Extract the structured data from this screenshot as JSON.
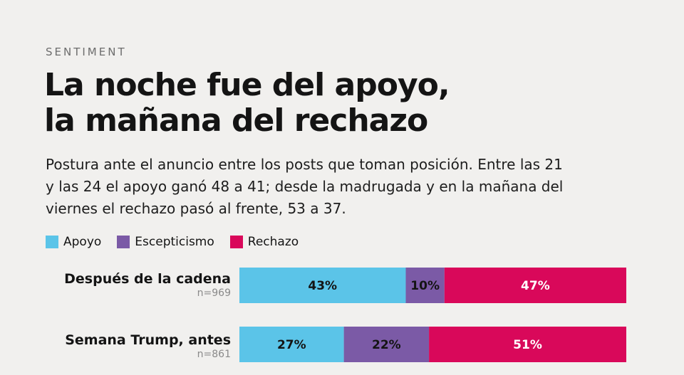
{
  "eyebrow": "SENTIMENT",
  "title_lines": [
    "La noche fue del apoyo,",
    "la mañana del rechazo"
  ],
  "subtitle_lines": [
    "Postura ante el anuncio entre los posts que toman posición. Entre las 21",
    "y las 24 el apoyo ganó 48 a 41; desde la madrugada y en la mañana del",
    "viernes el rechazo pasó al frente, 53 a 37."
  ],
  "chart_data": {
    "type": "bar",
    "stacked": true,
    "orientation": "horizontal",
    "normalized": true,
    "legend_position": "top-left",
    "series": [
      {
        "name": "Apoyo",
        "color": "#5bc4e8",
        "values": [
          43,
          27
        ],
        "labels": [
          "43%",
          "27%"
        ]
      },
      {
        "name": "Escepticismo",
        "color": "#7b5aa6",
        "values": [
          10,
          22
        ],
        "labels": [
          "10%",
          "22%"
        ]
      },
      {
        "name": "Rechazo",
        "color": "#d9085a",
        "values": [
          47,
          51
        ],
        "labels": [
          "47%",
          "51%"
        ]
      }
    ],
    "categories": [
      {
        "name": "Después de la cadena",
        "n": "n=969"
      },
      {
        "name": "Semana Trump, antes",
        "n": "n=861"
      }
    ]
  }
}
